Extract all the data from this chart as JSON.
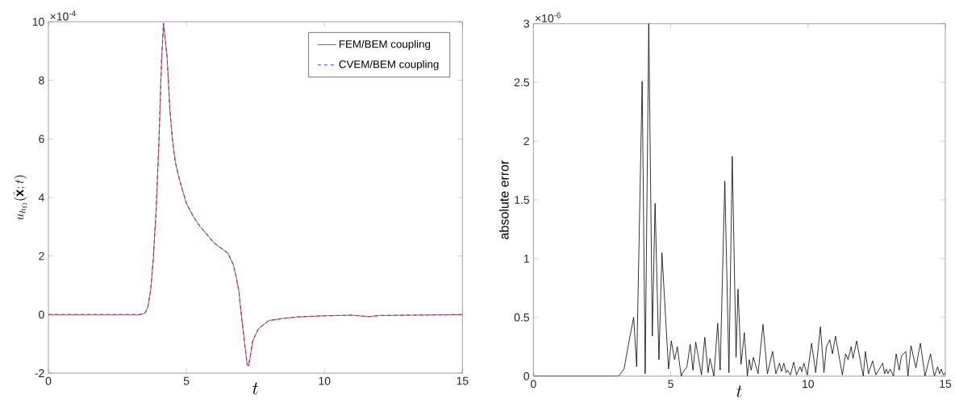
{
  "chart_data": [
    {
      "type": "line",
      "xlabel": "t",
      "ylabel": "u_{h_\\Omega}(\\hat{\\mathbf{x}};t)",
      "annotations": [
        "×10$^{-4}$"
      ],
      "legend": "top right",
      "marker": "none",
      "xlim": [
        0,
        15
      ],
      "xticks": [
        0,
        5,
        10,
        15
      ],
      "ylim": [
        -2,
        10
      ],
      "yticks": [
        -2,
        0,
        2,
        4,
        6,
        8,
        10
      ],
      "x": [
        0,
        3.3,
        3.5,
        3.6,
        3.7,
        3.8,
        3.9,
        4.0,
        4.1,
        4.17,
        4.3,
        4.4,
        4.5,
        4.6,
        4.75,
        5.0,
        5.25,
        5.5,
        6.0,
        6.5,
        6.7,
        6.8,
        6.9,
        7.0,
        7.1,
        7.2,
        7.25,
        7.3,
        7.4,
        7.5,
        7.6,
        7.8,
        8.0,
        8.5,
        9.0,
        10.0,
        11.0,
        11.6,
        12.0,
        13.0,
        15.0
      ],
      "series": [
        {
          "name": "FEM/BEM coupling",
          "color": "#ff0000",
          "line_style": "solid",
          "values": [
            0,
            0,
            0.05,
            0.25,
            0.8,
            1.9,
            3.5,
            5.8,
            8.7,
            9.95,
            8.8,
            7.0,
            5.9,
            5.2,
            4.6,
            3.8,
            3.35,
            3.0,
            2.45,
            2.1,
            1.7,
            1.3,
            0.8,
            -0.1,
            -0.9,
            -1.7,
            -1.75,
            -1.5,
            -0.9,
            -0.7,
            -0.5,
            -0.33,
            -0.2,
            -0.13,
            -0.08,
            -0.04,
            -0.02,
            -0.07,
            -0.03,
            -0.02,
            0
          ]
        },
        {
          "name": "CVEM/BEM coupling",
          "color": "#4055c8",
          "line_style": "dashed",
          "values": [
            0,
            0,
            0.05,
            0.25,
            0.8,
            1.9,
            3.5,
            5.8,
            8.7,
            9.95,
            8.8,
            7.0,
            5.9,
            5.2,
            4.6,
            3.8,
            3.35,
            3.0,
            2.45,
            2.1,
            1.7,
            1.3,
            0.8,
            -0.1,
            -0.9,
            -1.7,
            -1.75,
            -1.5,
            -0.9,
            -0.7,
            -0.5,
            -0.33,
            -0.2,
            -0.13,
            -0.08,
            -0.04,
            -0.02,
            -0.07,
            -0.03,
            -0.02,
            0
          ]
        }
      ]
    },
    {
      "type": "line",
      "xlabel": "t",
      "ylabel": "absolute error",
      "annotations": [
        "×10$^{-6}$"
      ],
      "marker": "none",
      "xlim": [
        0,
        15
      ],
      "xticks": [
        0,
        5,
        10,
        15
      ],
      "ylim": [
        0,
        3
      ],
      "yticks": [
        0,
        0.5,
        1,
        1.5,
        2,
        2.5,
        3
      ],
      "x": [
        0,
        3.1,
        3.3,
        3.5,
        3.65,
        3.76,
        3.96,
        4.07,
        4.2,
        4.33,
        4.43,
        4.57,
        4.68,
        4.92,
        5.02,
        5.14,
        5.24,
        5.38,
        5.43,
        5.59,
        5.71,
        5.81,
        5.91,
        6.12,
        6.24,
        6.36,
        6.43,
        6.57,
        6.71,
        6.8,
        6.97,
        7.12,
        7.24,
        7.38,
        7.45,
        7.56,
        7.68,
        7.79,
        7.86,
        7.93,
        8.01,
        8.18,
        8.36,
        8.52,
        8.71,
        8.83,
        8.96,
        9.03,
        9.12,
        9.2,
        9.26,
        9.36,
        9.48,
        9.58,
        9.71,
        9.77,
        9.85,
        9.97,
        10.13,
        10.28,
        10.45,
        10.58,
        10.67,
        10.79,
        10.89,
        11.0,
        11.25,
        11.37,
        11.46,
        11.57,
        11.64,
        11.77,
        12.01,
        12.09,
        12.2,
        12.35,
        12.47,
        12.72,
        12.79,
        12.85,
        12.91,
        12.99,
        13.11,
        13.21,
        13.32,
        13.4,
        13.56,
        13.64,
        13.75,
        13.93,
        14.09,
        14.26,
        14.46,
        14.6,
        14.72,
        14.79,
        14.85,
        14.93,
        15.0
      ],
      "series": [
        {
          "color": "#000000",
          "line_style": "solid",
          "values": [
            0,
            0,
            0.06,
            0.32,
            0.5,
            0.08,
            2.51,
            0.02,
            3,
            0.34,
            1.47,
            0.14,
            1.05,
            0.06,
            0.3,
            0.14,
            0.25,
            0,
            0.03,
            0.08,
            0.27,
            0.05,
            0.29,
            0.01,
            0.33,
            0.03,
            0.15,
            0,
            0.45,
            0.05,
            1.66,
            0.03,
            1.87,
            0.16,
            0.74,
            0.1,
            0.37,
            0,
            0.14,
            0.05,
            0.16,
            0.02,
            0.44,
            0.02,
            0.21,
            0.02,
            0.11,
            0.04,
            0.11,
            0.03,
            0.05,
            0.01,
            0.12,
            0.01,
            0.08,
            0.04,
            0.11,
            0.01,
            0.28,
            0.03,
            0.42,
            0.03,
            0.25,
            0.31,
            0.19,
            0.34,
            0.01,
            0.19,
            0.14,
            0.25,
            0.15,
            0.3,
            0,
            0.21,
            0.02,
            0.13,
            0.01,
            0.11,
            0.02,
            0.06,
            0.02,
            0.06,
            0,
            0.19,
            0.05,
            0.17,
            0.21,
            0,
            0.26,
            0.07,
            0.28,
            0,
            0.19,
            0,
            0.08,
            0.02,
            0.06,
            0.01,
            0.03
          ]
        }
      ]
    }
  ]
}
